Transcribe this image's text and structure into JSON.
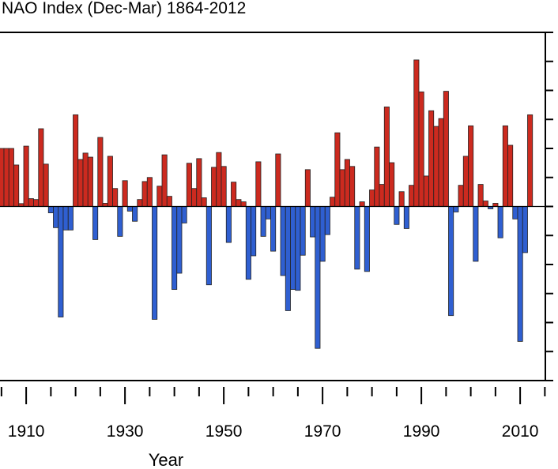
{
  "chart_data": {
    "type": "bar",
    "title": "NAO Index (Dec-Mar) 1864-2012",
    "x_label": "Year",
    "x": [
      1905,
      1906,
      1907,
      1908,
      1909,
      1910,
      1911,
      1912,
      1913,
      1914,
      1915,
      1916,
      1917,
      1918,
      1919,
      1920,
      1921,
      1922,
      1923,
      1924,
      1925,
      1926,
      1927,
      1928,
      1929,
      1930,
      1931,
      1932,
      1933,
      1934,
      1935,
      1936,
      1937,
      1938,
      1939,
      1940,
      1941,
      1942,
      1943,
      1944,
      1945,
      1946,
      1947,
      1948,
      1949,
      1950,
      1951,
      1952,
      1953,
      1954,
      1955,
      1956,
      1957,
      1958,
      1959,
      1960,
      1961,
      1962,
      1963,
      1964,
      1965,
      1966,
      1967,
      1968,
      1969,
      1970,
      1971,
      1972,
      1973,
      1974,
      1975,
      1976,
      1977,
      1978,
      1979,
      1980,
      1981,
      1982,
      1983,
      1984,
      1985,
      1986,
      1987,
      1988,
      1989,
      1990,
      1991,
      1992,
      1993,
      1994,
      1995,
      1996,
      1997,
      1998,
      1999,
      2000,
      2001,
      2002,
      2003,
      2004,
      2005,
      2006,
      2007,
      2008,
      2009,
      2010,
      2011,
      2012
    ],
    "values": [
      2.0,
      2.0,
      2.0,
      1.43,
      0.1,
      2.08,
      0.27,
      0.24,
      2.68,
      1.46,
      -0.22,
      -0.73,
      -3.81,
      -0.81,
      -0.81,
      3.16,
      1.62,
      1.84,
      1.7,
      -1.14,
      2.38,
      0.11,
      1.73,
      0.62,
      -1.03,
      0.89,
      -0.16,
      -0.51,
      0.24,
      0.86,
      1.0,
      -3.89,
      0.7,
      1.78,
      0.35,
      -2.86,
      -2.3,
      -0.57,
      1.49,
      0.62,
      1.65,
      0.3,
      -2.7,
      1.35,
      1.86,
      1.38,
      -1.24,
      0.84,
      0.24,
      0.16,
      -2.51,
      -1.7,
      1.54,
      -1.03,
      -0.43,
      -1.54,
      1.81,
      -2.38,
      -3.59,
      -2.86,
      -2.89,
      -1.68,
      1.27,
      -1.05,
      -4.89,
      -1.89,
      -0.97,
      0.32,
      2.54,
      1.27,
      1.62,
      1.38,
      -2.16,
      0.16,
      -2.24,
      0.57,
      2.05,
      0.76,
      3.43,
      1.51,
      -0.62,
      0.51,
      -0.76,
      0.73,
      5.05,
      3.95,
      1.05,
      3.3,
      2.76,
      3.03,
      3.97,
      -3.76,
      -0.19,
      0.73,
      1.73,
      2.78,
      -1.89,
      0.76,
      0.19,
      -0.08,
      0.11,
      -1.08,
      2.78,
      2.11,
      -0.43,
      -4.65,
      -1.59,
      3.16
    ],
    "positive_color": "#cc2a1f",
    "negative_color": "#2f5fd1",
    "xlim": [
      1904.7,
      2015.1
    ],
    "xticks": [
      1910,
      1930,
      1950,
      1970,
      1990,
      2010
    ],
    "xminor_ticks": [
      1905,
      1915,
      1920,
      1925,
      1935,
      1940,
      1945,
      1955,
      1960,
      1965,
      1975,
      1980,
      1985,
      1995,
      2000,
      2005,
      2015
    ],
    "ylim": [
      -6,
      6
    ],
    "yticks": [
      -6,
      -5,
      -4,
      -3,
      -2,
      -1,
      0,
      1,
      2,
      3,
      4,
      5,
      6
    ]
  }
}
